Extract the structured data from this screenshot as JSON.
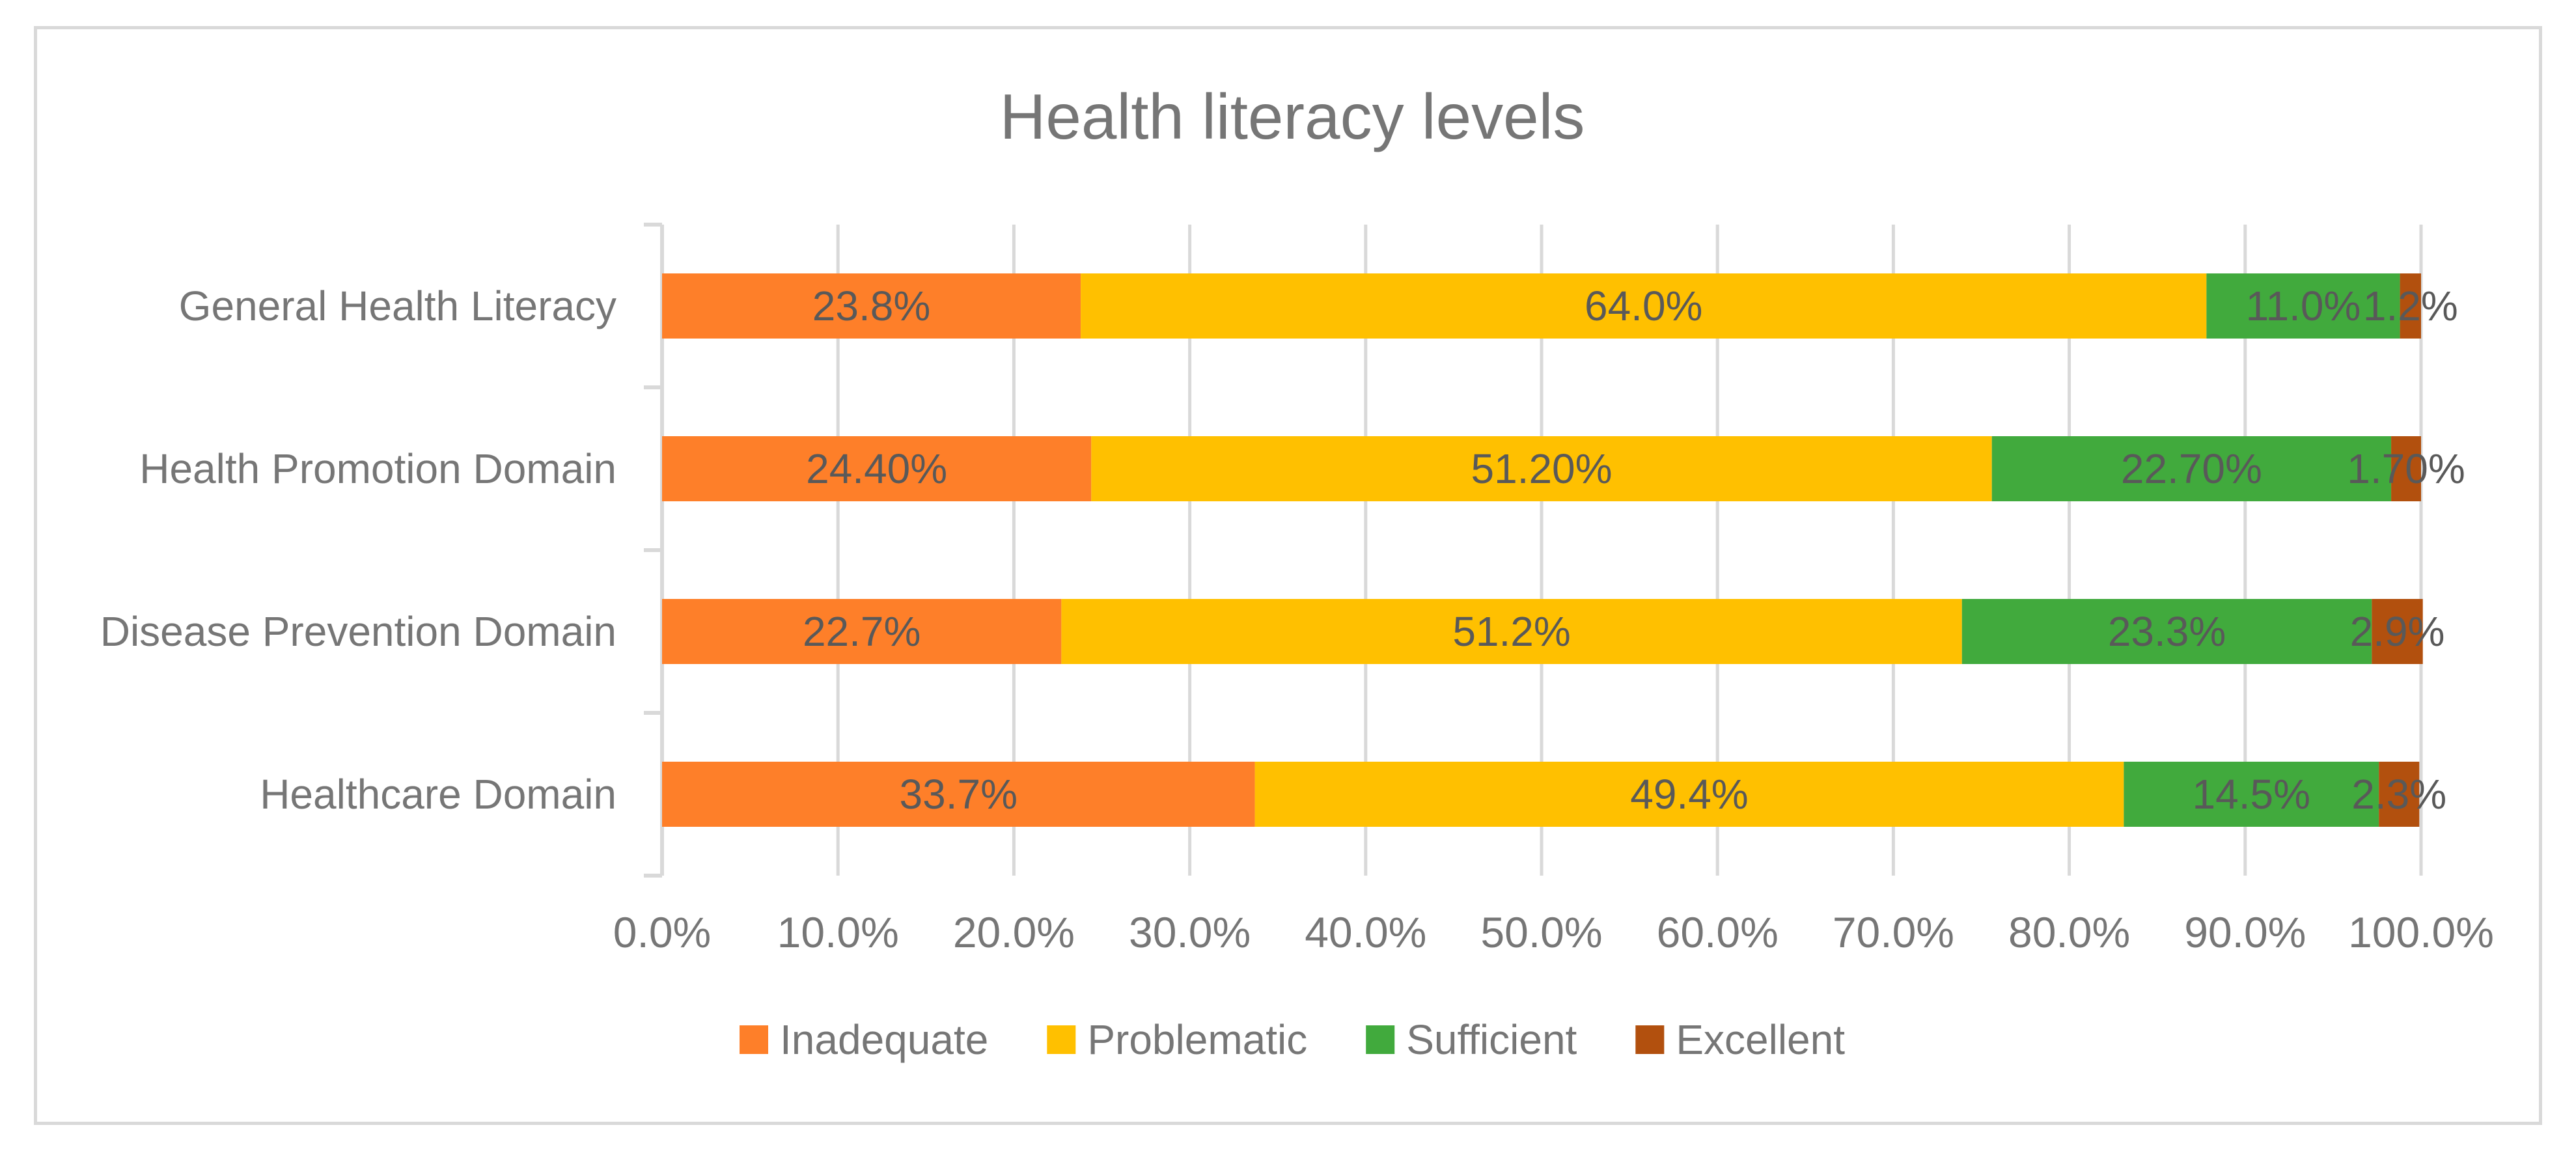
{
  "chart_data": {
    "type": "bar",
    "orientation": "horizontal",
    "stacked": true,
    "title": "Health literacy levels",
    "categories": [
      "General Health Literacy",
      "Health Promotion Domain",
      "Disease Prevention Domain",
      "Healthcare Domain"
    ],
    "series": [
      {
        "name": "Inadequate",
        "color": "#fe7f29",
        "values": [
          23.8,
          24.4,
          22.7,
          33.7
        ],
        "labels": [
          "23.8%",
          "24.40%",
          "22.7%",
          "33.7%"
        ]
      },
      {
        "name": "Problematic",
        "color": "#ffc000",
        "values": [
          64.0,
          51.2,
          51.2,
          49.4
        ],
        "labels": [
          "64.0%",
          "51.20%",
          "51.2%",
          "49.4%"
        ]
      },
      {
        "name": "Sufficient",
        "color": "#41aa3d",
        "values": [
          11.0,
          22.7,
          23.3,
          14.5
        ],
        "labels": [
          "11.0%",
          "22.70%",
          "23.3%",
          "14.5%"
        ]
      },
      {
        "name": "Excellent",
        "color": "#b2500e",
        "values": [
          1.2,
          1.7,
          2.9,
          2.3
        ],
        "labels": [
          "1.2%",
          "1.70%",
          "2.9%",
          "2.3%"
        ]
      }
    ],
    "xlim": [
      0,
      100
    ],
    "xticks": [
      "0.0%",
      "10.0%",
      "20.0%",
      "30.0%",
      "40.0%",
      "50.0%",
      "60.0%",
      "70.0%",
      "80.0%",
      "90.0%",
      "100.0%"
    ],
    "grid": true,
    "legend_position": "bottom"
  }
}
